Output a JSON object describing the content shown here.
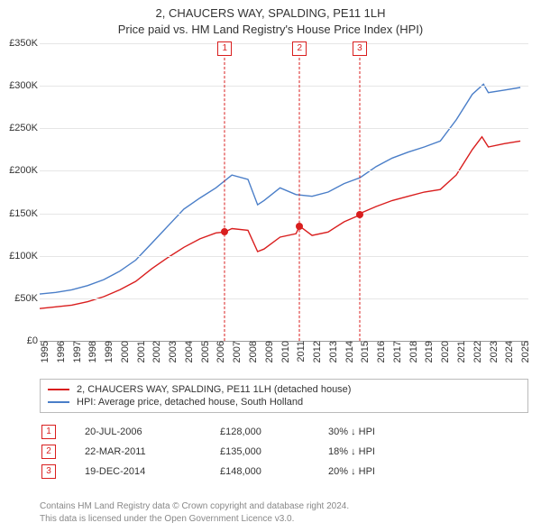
{
  "title_line1": "2, CHAUCERS WAY, SPALDING, PE11 1LH",
  "title_line2": "Price paid vs. HM Land Registry's House Price Index (HPI)",
  "chart": {
    "type": "line",
    "background_color": "#ffffff",
    "grid_color": "#e6e6e6",
    "text_color": "#333333",
    "ylim": [
      0,
      350000
    ],
    "ytick_step": 50000,
    "ytick_labels": [
      "£0",
      "£50K",
      "£100K",
      "£150K",
      "£200K",
      "£250K",
      "£300K",
      "£350K"
    ],
    "xlim": [
      1995,
      2025.5
    ],
    "xticks": [
      1995,
      1996,
      1997,
      1998,
      1999,
      2000,
      2001,
      2002,
      2003,
      2004,
      2005,
      2006,
      2007,
      2008,
      2009,
      2010,
      2011,
      2012,
      2013,
      2014,
      2015,
      2016,
      2017,
      2018,
      2019,
      2020,
      2021,
      2022,
      2023,
      2024,
      2025
    ],
    "label_fontsize": 11,
    "line_width": 1.4,
    "series": [
      {
        "name": "property",
        "label": "2, CHAUCERS WAY, SPALDING, PE11 1LH (detached house)",
        "color": "#d91e1e",
        "x": [
          1995,
          1996,
          1997,
          1998,
          1999,
          2000,
          2001,
          2002,
          2003,
          2004,
          2005,
          2006,
          2006.55,
          2007,
          2008,
          2008.6,
          2009,
          2010,
          2011,
          2011.22,
          2012,
          2013,
          2014,
          2014.97,
          2015,
          2016,
          2017,
          2018,
          2019,
          2020,
          2021,
          2022,
          2022.6,
          2023,
          2024,
          2025
        ],
        "y": [
          38000,
          40000,
          42000,
          46000,
          52000,
          60000,
          70000,
          85000,
          98000,
          110000,
          120000,
          127000,
          128000,
          132000,
          130000,
          105000,
          108000,
          122000,
          126000,
          135000,
          124000,
          128000,
          140000,
          148000,
          150000,
          158000,
          165000,
          170000,
          175000,
          178000,
          195000,
          225000,
          240000,
          228000,
          232000,
          235000
        ]
      },
      {
        "name": "hpi",
        "label": "HPI: Average price, detached house, South Holland",
        "color": "#4a7ec8",
        "x": [
          1995,
          1996,
          1997,
          1998,
          1999,
          2000,
          2001,
          2002,
          2003,
          2004,
          2005,
          2006,
          2007,
          2008,
          2008.6,
          2009,
          2010,
          2011,
          2012,
          2013,
          2014,
          2015,
          2016,
          2017,
          2018,
          2019,
          2020,
          2021,
          2022,
          2022.7,
          2023,
          2024,
          2025
        ],
        "y": [
          55000,
          57000,
          60000,
          65000,
          72000,
          82000,
          95000,
          115000,
          135000,
          155000,
          168000,
          180000,
          195000,
          190000,
          160000,
          165000,
          180000,
          172000,
          170000,
          175000,
          185000,
          192000,
          205000,
          215000,
          222000,
          228000,
          235000,
          260000,
          290000,
          302000,
          292000,
          295000,
          298000
        ]
      }
    ],
    "sale_markers": [
      {
        "n": "1",
        "x": 2006.55,
        "y": 128000,
        "color": "#d91e1e"
      },
      {
        "n": "2",
        "x": 2011.22,
        "y": 135000,
        "color": "#d91e1e"
      },
      {
        "n": "3",
        "x": 2014.97,
        "y": 148000,
        "color": "#d91e1e"
      }
    ]
  },
  "legend": {
    "border_color": "#bbbbbb",
    "items": [
      {
        "color": "#d91e1e",
        "label": "2, CHAUCERS WAY, SPALDING, PE11 1LH (detached house)"
      },
      {
        "color": "#4a7ec8",
        "label": "HPI: Average price, detached house, South Holland"
      }
    ]
  },
  "sales": [
    {
      "n": "1",
      "date": "20-JUL-2006",
      "price": "£128,000",
      "delta": "30% ↓ HPI",
      "color": "#d91e1e"
    },
    {
      "n": "2",
      "date": "22-MAR-2011",
      "price": "£135,000",
      "delta": "18% ↓ HPI",
      "color": "#d91e1e"
    },
    {
      "n": "3",
      "date": "19-DEC-2014",
      "price": "£148,000",
      "delta": "20% ↓ HPI",
      "color": "#d91e1e"
    }
  ],
  "footer_line1": "Contains HM Land Registry data © Crown copyright and database right 2024.",
  "footer_line2": "This data is licensed under the Open Government Licence v3.0.",
  "footer_color": "#888888"
}
